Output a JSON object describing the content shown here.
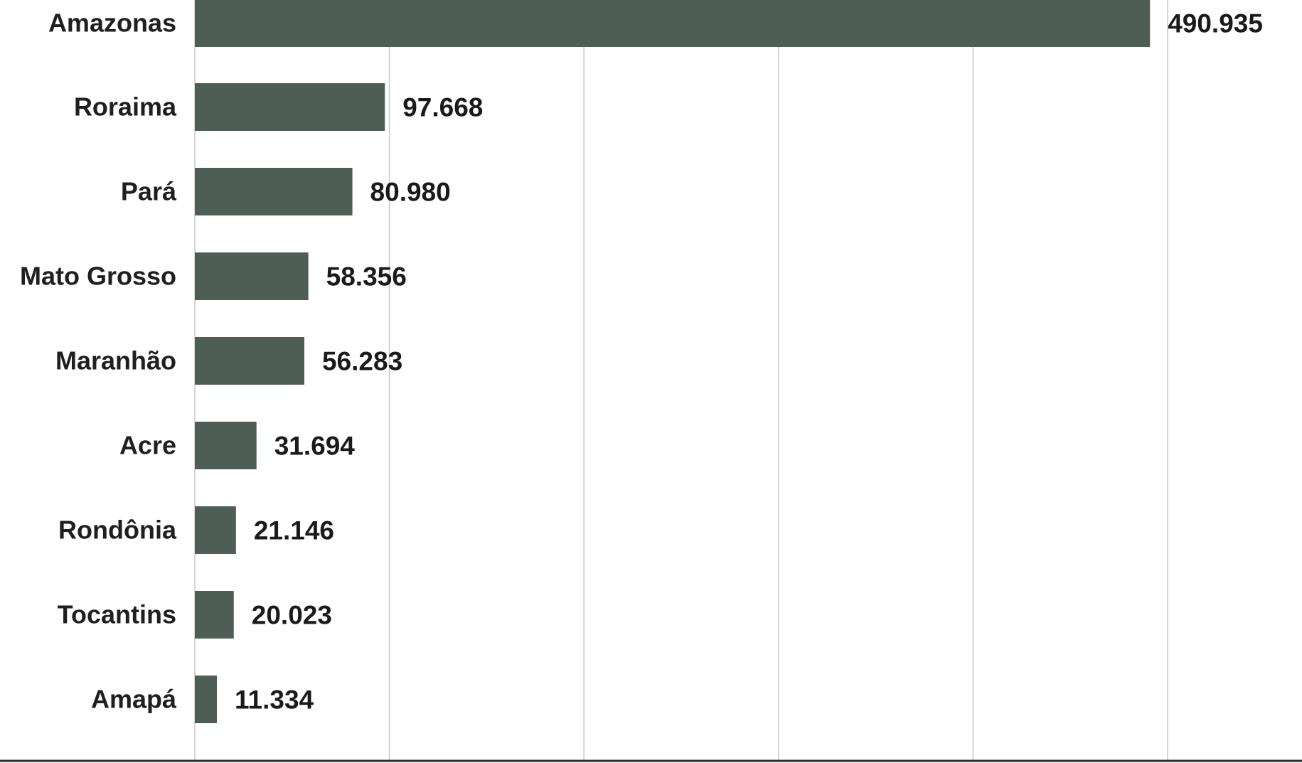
{
  "chart_data": {
    "type": "bar",
    "orientation": "horizontal",
    "categories": [
      "Amazonas",
      "Roraima",
      "Pará",
      "Mato Grosso",
      "Maranhão",
      "Acre",
      "Rondônia",
      "Tocantins",
      "Amapá"
    ],
    "values": [
      490935,
      97668,
      80980,
      58356,
      56283,
      31694,
      21146,
      20023,
      11334
    ],
    "value_labels": [
      "490.935",
      "97.668",
      "80.980",
      "58.356",
      "56.283",
      "31.694",
      "21.146",
      "20.023",
      "11.334"
    ],
    "xlim": [
      0,
      540000
    ],
    "gridlines": [
      100000,
      200000,
      300000,
      400000,
      500000
    ],
    "grid": true,
    "title": "",
    "xlabel": "",
    "ylabel": "",
    "bar_color": "#4e5e57"
  }
}
